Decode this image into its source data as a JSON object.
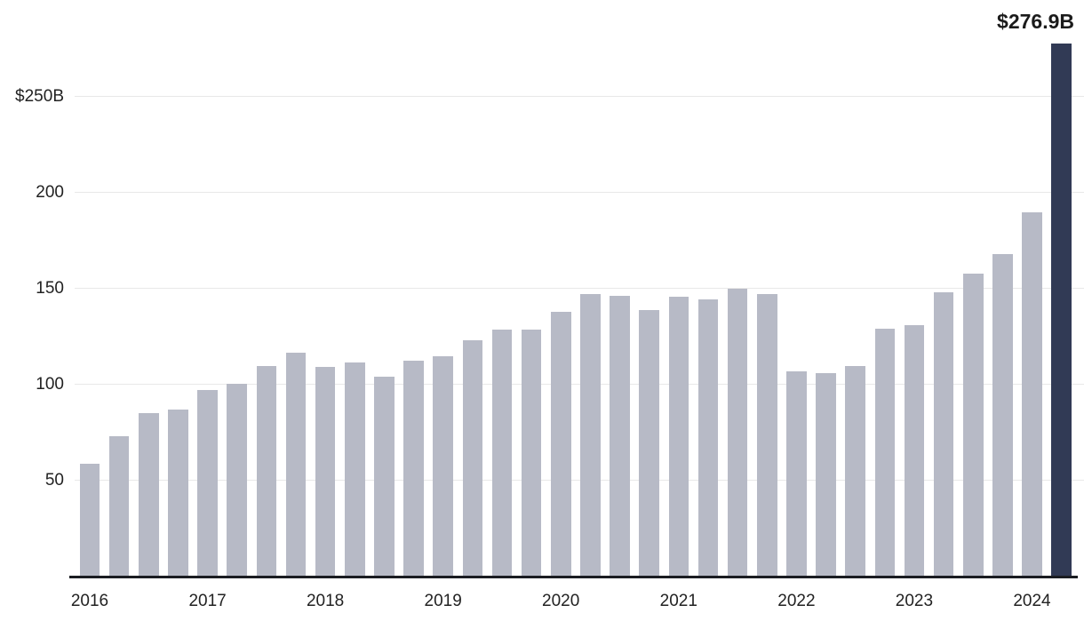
{
  "chart_data": {
    "type": "bar",
    "title": "",
    "xlabel": "",
    "ylabel": "",
    "unit": "USD billions",
    "categories": [
      "Q1 2016",
      "Q2 2016",
      "Q3 2016",
      "Q4 2016",
      "Q1 2017",
      "Q2 2017",
      "Q3 2017",
      "Q4 2017",
      "Q1 2018",
      "Q2 2018",
      "Q3 2018",
      "Q4 2018",
      "Q1 2019",
      "Q2 2019",
      "Q3 2019",
      "Q4 2019",
      "Q1 2020",
      "Q2 2020",
      "Q3 2020",
      "Q4 2020",
      "Q1 2021",
      "Q2 2021",
      "Q3 2021",
      "Q4 2021",
      "Q1 2022",
      "Q2 2022",
      "Q3 2022",
      "Q4 2022",
      "Q1 2023",
      "Q2 2023",
      "Q3 2023",
      "Q4 2023",
      "Q1 2024",
      "Q2 2024"
    ],
    "values": [
      58.3,
      72.7,
      84.8,
      86.4,
      96.5,
      99.7,
      109.3,
      116.0,
      108.6,
      111.1,
      103.6,
      111.9,
      114.2,
      122.4,
      128.2,
      128.0,
      137.3,
      146.6,
      145.7,
      138.3,
      145.4,
      144.1,
      149.2,
      146.7,
      106.3,
      105.4,
      109.0,
      128.6,
      130.6,
      147.4,
      157.2,
      167.6,
      189.0,
      276.9
    ],
    "highlight_index": 33,
    "highlight_label": "$276.9B",
    "ylim": [
      0,
      285
    ],
    "grid": true,
    "legend": "none",
    "y_ticks": [
      {
        "value": 250,
        "label": "$250B"
      },
      {
        "value": 200,
        "label": "200"
      },
      {
        "value": 150,
        "label": "150"
      },
      {
        "value": 100,
        "label": "100"
      },
      {
        "value": 50,
        "label": "50"
      }
    ],
    "x_ticks": [
      {
        "label": "2016",
        "category_index": 0
      },
      {
        "label": "2017",
        "category_index": 4
      },
      {
        "label": "2018",
        "category_index": 8
      },
      {
        "label": "2019",
        "category_index": 12
      },
      {
        "label": "2020",
        "category_index": 16
      },
      {
        "label": "2021",
        "category_index": 20
      },
      {
        "label": "2022",
        "category_index": 24
      },
      {
        "label": "2023",
        "category_index": 28
      },
      {
        "label": "2024",
        "category_index": 32
      }
    ],
    "colors": {
      "bar": "#b7bac6",
      "highlight_bar": "#313a55",
      "gridline": "#e8e8e8",
      "axis_line": "#1b1d22",
      "tick_text": "#222222",
      "annotation_text": "#1b1b1b",
      "background": "#ffffff"
    }
  }
}
